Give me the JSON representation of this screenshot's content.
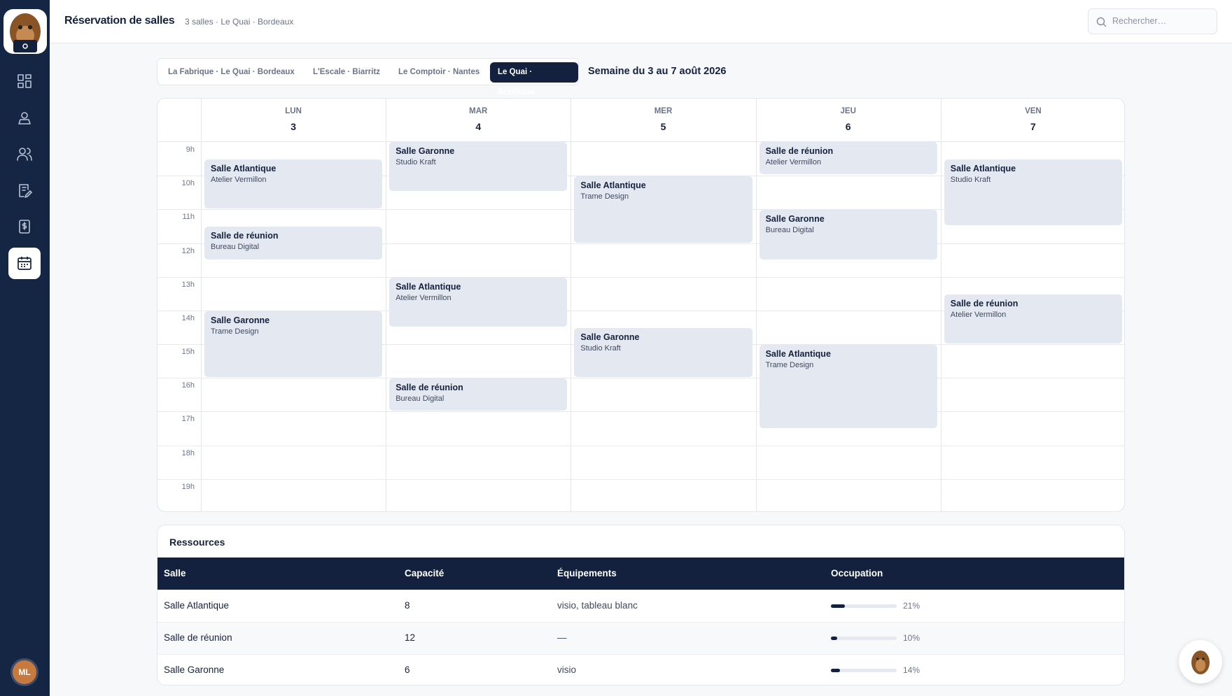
{
  "header": {
    "title": "Réservation de salles",
    "subtitle": "3 salles · Le Quai · Bordeaux",
    "search_placeholder": "Rechercher…"
  },
  "user": {
    "initials": "ML"
  },
  "tabs": {
    "items": [
      "La Fabrique · Le Quai · Bordeaux",
      "L'Escale · Biarritz",
      "Le Comptoir · Nantes",
      "Le Quai · Bordeaux"
    ],
    "active": 3
  },
  "week_label": "Semaine du 3 au 7 août 2026",
  "calendar": {
    "days": [
      {
        "name": "LUN",
        "num": 3
      },
      {
        "name": "MAR",
        "num": 4
      },
      {
        "name": "MER",
        "num": 5
      },
      {
        "name": "JEU",
        "num": 6
      },
      {
        "name": "VEN",
        "num": 7
      }
    ],
    "hours": [
      "9h",
      "10h",
      "11h",
      "12h",
      "13h",
      "14h",
      "15h",
      "16h",
      "17h",
      "18h",
      "19h"
    ],
    "first_hour": 9,
    "events": [
      {
        "day": 0,
        "start": 9.5,
        "end": 11,
        "room": "Salle Atlantique",
        "client": "Atelier Vermillon"
      },
      {
        "day": 0,
        "start": 11.5,
        "end": 12.5,
        "room": "Salle de réunion",
        "client": "Bureau Digital"
      },
      {
        "day": 0,
        "start": 14,
        "end": 16,
        "room": "Salle Garonne",
        "client": "Trame Design"
      },
      {
        "day": 1,
        "start": 9,
        "end": 10.5,
        "room": "Salle Garonne",
        "client": "Studio Kraft"
      },
      {
        "day": 1,
        "start": 13,
        "end": 14.5,
        "room": "Salle Atlantique",
        "client": "Atelier Vermillon"
      },
      {
        "day": 1,
        "start": 16,
        "end": 17,
        "room": "Salle de réunion",
        "client": "Bureau Digital"
      },
      {
        "day": 2,
        "start": 10,
        "end": 12,
        "room": "Salle Atlantique",
        "client": "Trame Design"
      },
      {
        "day": 2,
        "start": 14.5,
        "end": 16,
        "room": "Salle Garonne",
        "client": "Studio Kraft"
      },
      {
        "day": 3,
        "start": 9,
        "end": 10,
        "room": "Salle de réunion",
        "client": "Atelier Vermillon"
      },
      {
        "day": 3,
        "start": 11,
        "end": 12.5,
        "room": "Salle Garonne",
        "client": "Bureau Digital"
      },
      {
        "day": 3,
        "start": 15,
        "end": 17.5,
        "room": "Salle Atlantique",
        "client": "Trame Design"
      },
      {
        "day": 4,
        "start": 9.5,
        "end": 11.5,
        "room": "Salle Atlantique",
        "client": "Studio Kraft"
      },
      {
        "day": 4,
        "start": 13.5,
        "end": 15,
        "room": "Salle de réunion",
        "client": "Atelier Vermillon"
      }
    ]
  },
  "resources": {
    "title": "Ressources",
    "columns": [
      "Salle",
      "Capacité",
      "Équipements",
      "Occupation"
    ],
    "rows": [
      {
        "room": "Salle Atlantique",
        "capacity": 8,
        "equipment": "visio, tableau blanc",
        "occupation": 21,
        "occupation_label": "21%"
      },
      {
        "room": "Salle de réunion",
        "capacity": 12,
        "equipment": "—",
        "occupation": 10,
        "occupation_label": "10%"
      },
      {
        "room": "Salle Garonne",
        "capacity": 6,
        "equipment": "visio",
        "occupation": 14,
        "occupation_label": "14%"
      }
    ]
  }
}
